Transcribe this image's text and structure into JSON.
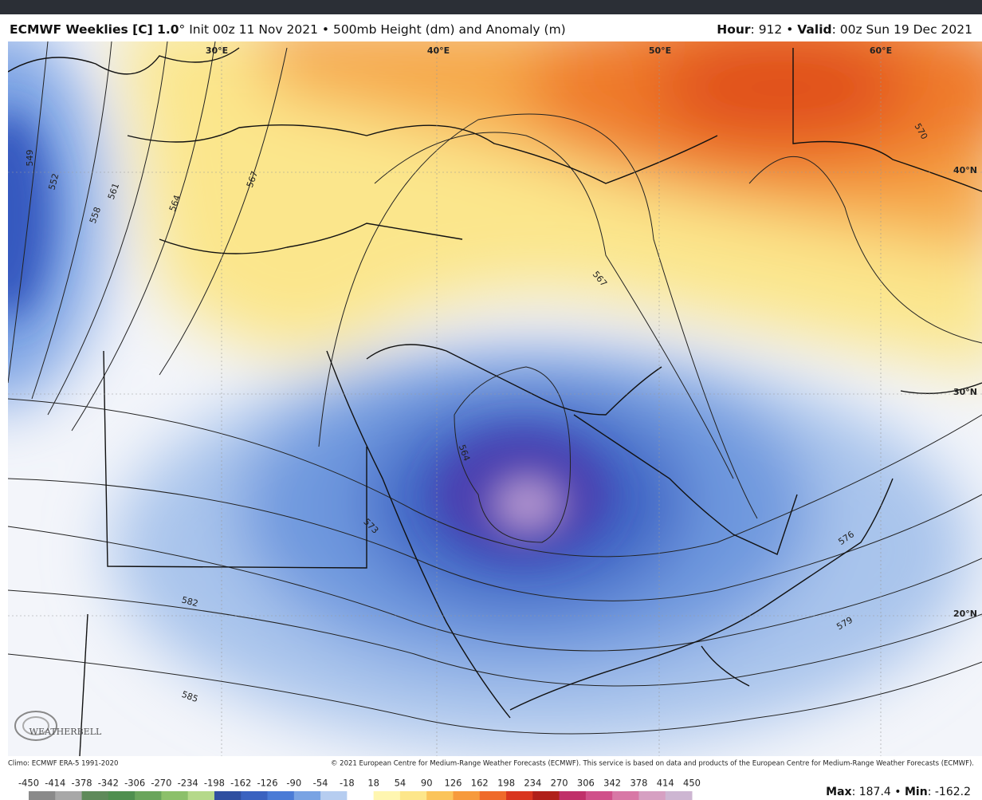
{
  "header": {
    "left": [
      {
        "text": "ECMWF Weeklies [C] 1.0",
        "bold": true
      },
      {
        "text": "° Init 00z 11 Nov 2021 • 500mb Height (dm) and Anomaly (m)",
        "bold": false
      }
    ],
    "right": [
      {
        "text": "Hour",
        "bold": true
      },
      {
        "text": ": 912 • ",
        "bold": false
      },
      {
        "text": "Valid",
        "bold": true
      },
      {
        "text": ": 00z Sun 19 Dec 2021",
        "bold": false
      }
    ]
  },
  "map": {
    "longitude_labels": [
      "30°E",
      "40°E",
      "50°E",
      "60°E"
    ],
    "latitude_labels": [
      "40°N",
      "30°N",
      "20°N"
    ],
    "contour_labels": [
      "549",
      "552",
      "558",
      "561",
      "564",
      "567",
      "567",
      "564",
      "570",
      "573",
      "576",
      "579",
      "582",
      "585"
    ],
    "logo": "WEATHERBELL"
  },
  "footer": {
    "climo": "Climo: ECMWF ERA-5 1991-2020",
    "copyright": "© 2021 European Centre for Medium-Range Weather Forecasts (ECMWF). This service is based on data and products of the European Centre for Medium-Range Weather Forecasts (ECMWF)."
  },
  "colorbar": {
    "ticks": [
      -450,
      -414,
      -378,
      -342,
      -306,
      -270,
      -234,
      -198,
      -162,
      -126,
      -90,
      -54,
      -18,
      18,
      54,
      90,
      126,
      162,
      198,
      234,
      270,
      306,
      342,
      378,
      414,
      450
    ],
    "colors": [
      "#8a8a8a",
      "#a8a8a8",
      "#5f8a5a",
      "#4f8f4f",
      "#6aa55c",
      "#8cc06a",
      "#b5d98a",
      "#2f4fa0",
      "#3a62c0",
      "#4a7bd6",
      "#79a3e3",
      "#b6cdf0",
      "#ffffff",
      "#fff6b0",
      "#fde68a",
      "#fbc45a",
      "#f79a3c",
      "#ef6a2a",
      "#d9361f",
      "#b0201a",
      "#c0306a",
      "#d0508a",
      "#d878a6",
      "#d6a0c2",
      "#cdb6d2"
    ]
  },
  "stats": [
    {
      "text": "Max",
      "bold": true
    },
    {
      "text": ": 187.4 • ",
      "bold": false
    },
    {
      "text": "Min",
      "bold": true
    },
    {
      "text": ": -162.2",
      "bold": false
    }
  ]
}
